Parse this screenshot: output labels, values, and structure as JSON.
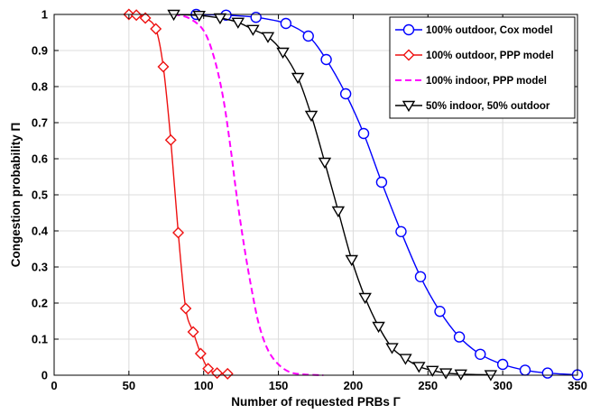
{
  "chart_data": {
    "type": "line",
    "title": "",
    "xlabel": "Number of requested PRBs Γ",
    "ylabel": "Congestion probability Π",
    "xlim": [
      0,
      350
    ],
    "ylim": [
      0,
      1
    ],
    "xticks": [
      0,
      50,
      100,
      150,
      200,
      250,
      300,
      350
    ],
    "yticks": [
      0,
      0.1,
      0.2,
      0.3,
      0.4,
      0.5,
      0.6,
      0.7,
      0.8,
      0.9,
      1
    ],
    "xtick_labels": [
      "0",
      "50",
      "100",
      "150",
      "200",
      "250",
      "300",
      "350"
    ],
    "ytick_labels": [
      "0",
      "0.1",
      "0.2",
      "0.3",
      "0.4",
      "0.5",
      "0.6",
      "0.7",
      "0.8",
      "0.9",
      "1"
    ],
    "grid": true,
    "legend_position": "top-right",
    "series": [
      {
        "name": "100% outdoor, Cox model",
        "color": "#0000ff",
        "dash": "solid",
        "marker": "circle",
        "x": [
          95,
          115,
          135,
          155,
          170,
          182,
          195,
          207,
          219,
          232,
          245,
          258,
          271,
          285,
          300,
          315,
          330,
          350
        ],
        "y": [
          1.0,
          0.998,
          0.992,
          0.975,
          0.94,
          0.875,
          0.78,
          0.67,
          0.535,
          0.398,
          0.273,
          0.177,
          0.106,
          0.058,
          0.03,
          0.014,
          0.006,
          0.001
        ]
      },
      {
        "name": "100% outdoor, PPP model",
        "color": "#ee1111",
        "dash": "solid",
        "marker": "diamond",
        "x": [
          50,
          55,
          61,
          68,
          73,
          78,
          83,
          88,
          93,
          98,
          103,
          109,
          116
        ],
        "y": [
          1.0,
          0.998,
          0.99,
          0.96,
          0.855,
          0.652,
          0.395,
          0.185,
          0.12,
          0.06,
          0.018,
          0.006,
          0.004
        ]
      },
      {
        "name": "100% indoor, PPP model",
        "color": "#ff00ff",
        "dash": "dashed",
        "marker": "none",
        "x": [
          80,
          90,
          100,
          107,
          113,
          118,
          122,
          127,
          132,
          137,
          143,
          150,
          158,
          168,
          180
        ],
        "y": [
          1.0,
          0.99,
          0.955,
          0.88,
          0.77,
          0.63,
          0.5,
          0.36,
          0.24,
          0.14,
          0.07,
          0.03,
          0.008,
          0.002,
          0.0
        ]
      },
      {
        "name": "50% indoor, 50% outdoor",
        "color": "#000000",
        "dash": "solid",
        "marker": "triangle-down",
        "x": [
          80,
          97,
          111,
          123,
          133,
          143,
          153,
          163,
          172,
          181,
          190,
          199,
          208,
          217,
          226,
          235,
          244,
          253,
          262,
          272,
          292
        ],
        "y": [
          1.0,
          0.997,
          0.99,
          0.978,
          0.958,
          0.938,
          0.895,
          0.825,
          0.72,
          0.59,
          0.455,
          0.32,
          0.215,
          0.135,
          0.076,
          0.046,
          0.024,
          0.013,
          0.006,
          0.003,
          0.001
        ]
      }
    ]
  }
}
